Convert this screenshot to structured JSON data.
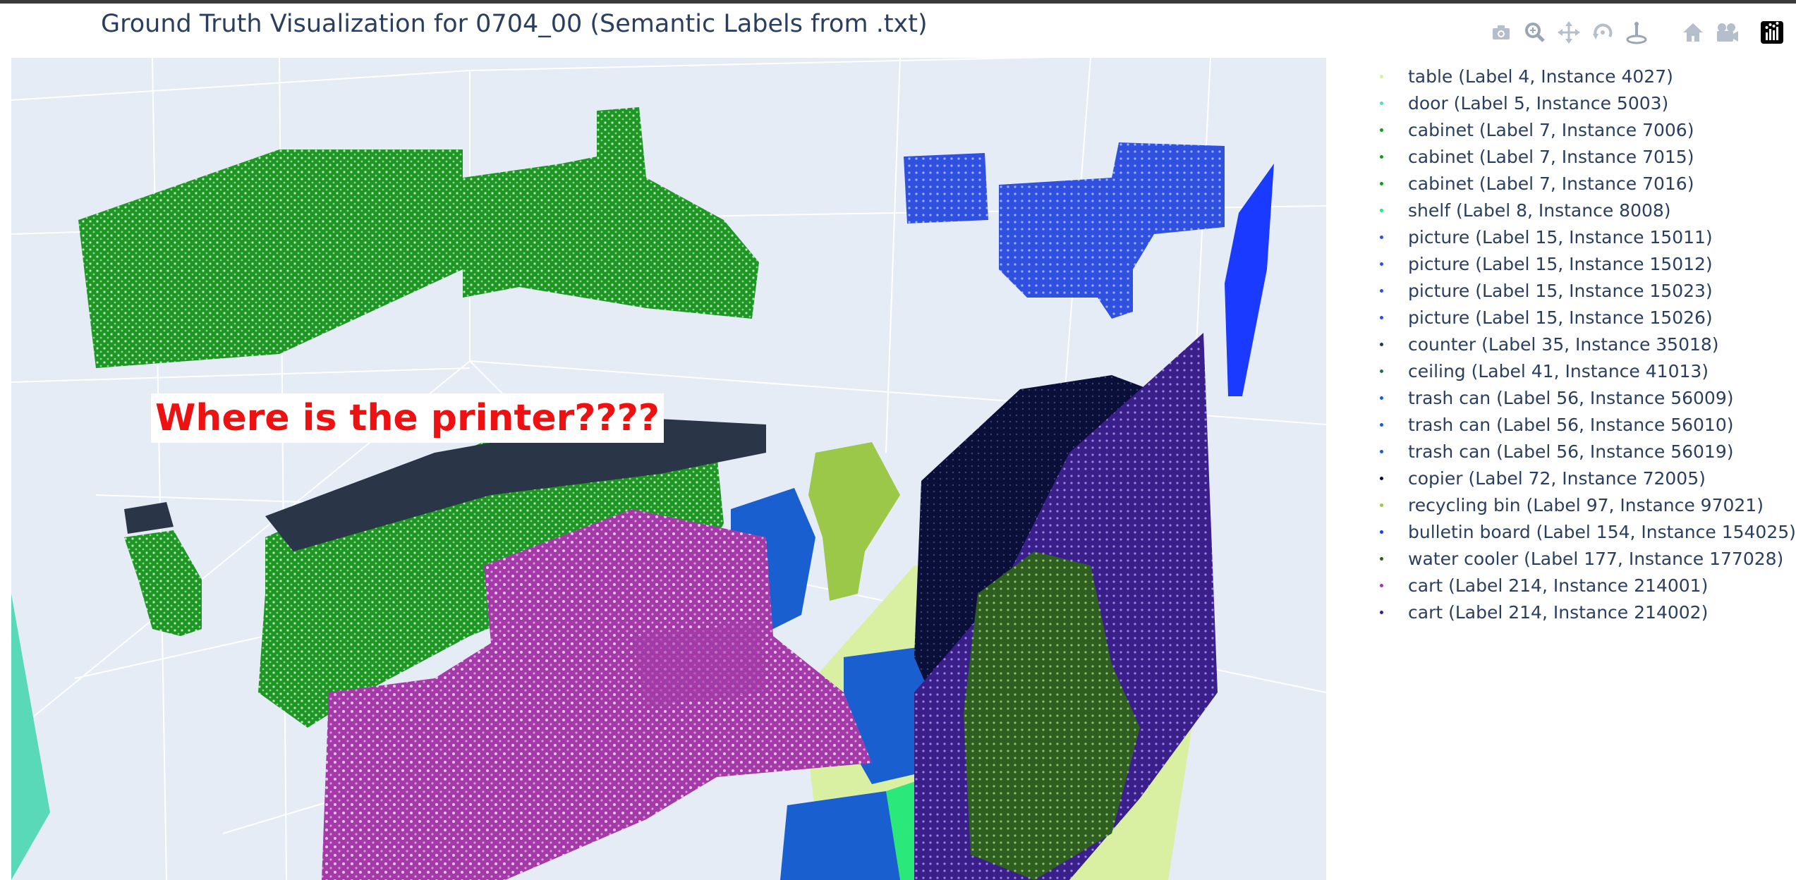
{
  "title": "Ground Truth Visualization for 0704_00 (Semantic Labels from .txt)",
  "annotation": "Where is the printer????",
  "modebar": [
    {
      "name": "download-png-button",
      "icon": "camera-icon"
    },
    {
      "name": "zoom-button",
      "icon": "zoom-icon"
    },
    {
      "name": "pan-button",
      "icon": "pan-icon"
    },
    {
      "name": "orbit-rotation-button",
      "icon": "orbit-icon"
    },
    {
      "name": "turntable-rotation-button",
      "icon": "turntable-icon"
    },
    {
      "name": "reset-camera-default-button",
      "icon": "home-icon"
    },
    {
      "name": "reset-camera-last-save-button",
      "icon": "camera-reset-icon"
    },
    {
      "name": "plotly-logo-link",
      "icon": "plotly-logo-icon"
    }
  ],
  "legend": [
    {
      "label": "table (Label 4, Instance 4027)",
      "color": "#d9f0a3"
    },
    {
      "label": "door (Label 5, Instance 5003)",
      "color": "#5ad9b8"
    },
    {
      "label": "cabinet (Label 7, Instance 7006)",
      "color": "#1e9624"
    },
    {
      "label": "cabinet (Label 7, Instance 7015)",
      "color": "#1e9624"
    },
    {
      "label": "cabinet (Label 7, Instance 7016)",
      "color": "#1e9624"
    },
    {
      "label": "shelf (Label 8, Instance 8008)",
      "color": "#2ae87a"
    },
    {
      "label": "picture (Label 15, Instance 15011)",
      "color": "#3050e0"
    },
    {
      "label": "picture (Label 15, Instance 15012)",
      "color": "#3050e0"
    },
    {
      "label": "picture (Label 15, Instance 15023)",
      "color": "#3050e0"
    },
    {
      "label": "picture (Label 15, Instance 15026)",
      "color": "#3050e0"
    },
    {
      "label": "counter (Label 35, Instance 35018)",
      "color": "#2a3548"
    },
    {
      "label": "ceiling (Label 41, Instance 41013)",
      "color": "#2f6a5a"
    },
    {
      "label": "trash can (Label 56, Instance 56009)",
      "color": "#1a5fd0"
    },
    {
      "label": "trash can (Label 56, Instance 56010)",
      "color": "#1a5fd0"
    },
    {
      "label": "trash can (Label 56, Instance 56019)",
      "color": "#1a5fd0"
    },
    {
      "label": "copier (Label 72, Instance 72005)",
      "color": "#0a0f3a"
    },
    {
      "label": "recycling bin (Label 97, Instance 97021)",
      "color": "#9cc84a"
    },
    {
      "label": "bulletin board (Label 154, Instance 154025)",
      "color": "#1a3aff"
    },
    {
      "label": "water cooler (Label 177, Instance 177028)",
      "color": "#2e5e20"
    },
    {
      "label": "cart (Label 214, Instance 214001)",
      "color": "#a43aa8"
    },
    {
      "label": "cart (Label 214, Instance 214002)",
      "color": "#3a1e8a"
    }
  ]
}
